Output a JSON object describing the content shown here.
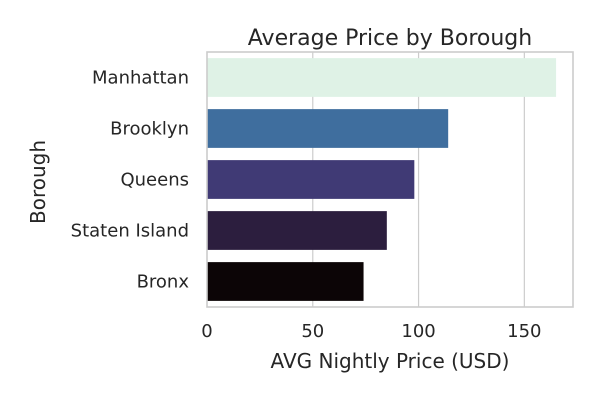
{
  "chart_data": {
    "type": "bar",
    "orientation": "horizontal",
    "title": "Average Price by Borough",
    "xlabel": "AVG Nightly Price (USD)",
    "ylabel": "Borough",
    "categories": [
      "Manhattan",
      "Brooklyn",
      "Queens",
      "Staten Island",
      "Bronx"
    ],
    "values": [
      165,
      114,
      98,
      85,
      74
    ],
    "bar_colors": [
      "#dff2e6",
      "#3f6e9e",
      "#403a75",
      "#2c1e3e",
      "#0c0506"
    ],
    "xlim": [
      0,
      173
    ],
    "xticks": [
      0,
      50,
      100,
      150
    ],
    "xtick_labels": [
      "0",
      "50",
      "100",
      "150"
    ],
    "grid": "vertical",
    "legend": "none"
  }
}
